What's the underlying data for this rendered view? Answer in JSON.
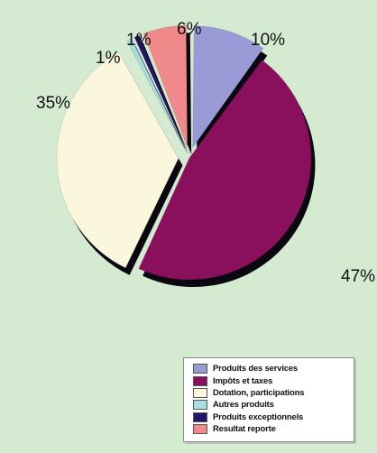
{
  "chart_data": {
    "type": "pie",
    "slices": [
      {
        "label": "Produits des services",
        "value": 10,
        "value_label": "10%",
        "color": "#9a9bd6",
        "exploded": true
      },
      {
        "label": "Impôts et taxes",
        "value": 47,
        "value_label": "47%",
        "color": "#8a0f5c",
        "exploded": false
      },
      {
        "label": "Dotation, participations",
        "value": 35,
        "value_label": "35%",
        "color": "#fbf7dc",
        "exploded": true
      },
      {
        "label": "Autres produits",
        "value": 1,
        "value_label": "1%",
        "color": "#a9dde0",
        "exploded": true
      },
      {
        "label": "Produits exceptionnels",
        "value": 1,
        "value_label": "1%",
        "color": "#23156b",
        "exploded": true
      },
      {
        "label": "Resultat reporte",
        "value": 6,
        "value_label": "6%",
        "color": "#f08a8a",
        "exploded": true
      }
    ],
    "legend": "bottom-right",
    "style": "3d-exploded"
  },
  "colors": {
    "background": "#d4ebd2",
    "shadow": "#0b0710"
  }
}
